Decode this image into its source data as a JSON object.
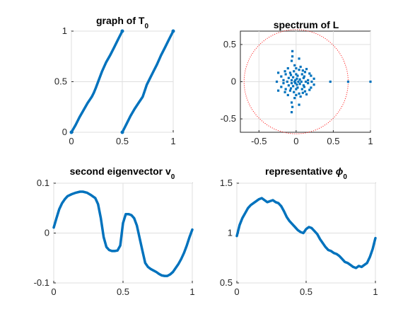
{
  "figure": {
    "background": "#ffffff",
    "line_color": "#0072bd",
    "circle_color": "#ff0000"
  },
  "chart_data": [
    {
      "id": "graph_T0",
      "type": "line",
      "title": "graph of T",
      "title_subscript": "0",
      "xlim": [
        0,
        1
      ],
      "ylim": [
        0,
        1
      ],
      "xticks": [
        0,
        0.5,
        1
      ],
      "xtick_labels": [
        "0",
        "0.5",
        "1"
      ],
      "yticks": [
        0,
        0.5,
        1
      ],
      "ytick_labels": [
        "0",
        "0.5",
        "1"
      ],
      "grid": true,
      "series": [
        {
          "x": [
            0,
            0.04,
            0.08,
            0.12,
            0.16,
            0.2,
            0.22,
            0.24,
            0.27,
            0.3,
            0.34,
            0.38,
            0.42,
            0.46,
            0.5
          ],
          "y": [
            0,
            0.07,
            0.15,
            0.22,
            0.29,
            0.35,
            0.39,
            0.44,
            0.52,
            0.6,
            0.69,
            0.76,
            0.84,
            0.92,
            1.0
          ]
        },
        {
          "x": [
            0.5,
            0.54,
            0.58,
            0.62,
            0.66,
            0.7,
            0.72,
            0.74,
            0.77,
            0.8,
            0.84,
            0.88,
            0.92,
            0.96,
            1.0
          ],
          "y": [
            0,
            0.08,
            0.16,
            0.23,
            0.29,
            0.35,
            0.41,
            0.47,
            0.53,
            0.59,
            0.67,
            0.76,
            0.84,
            0.92,
            1.0
          ]
        }
      ]
    },
    {
      "id": "spectrum_L",
      "type": "scatter",
      "title": "spectrum of L",
      "xlim": [
        -0.75,
        1
      ],
      "ylim": [
        -0.68,
        0.68
      ],
      "xticks": [
        -0.5,
        0,
        0.5,
        1
      ],
      "xtick_labels": [
        "-0.5",
        "0",
        "0.5",
        "1"
      ],
      "yticks": [
        -0.5,
        0,
        0.5
      ],
      "ytick_labels": [
        "-0.5",
        "0",
        "0.5"
      ],
      "grid": true,
      "circle": {
        "radius": 0.7
      },
      "points": [
        [
          1.0,
          0.0
        ],
        [
          0.7,
          0.0
        ],
        [
          0.46,
          0.0
        ],
        [
          -0.26,
          0.0
        ],
        [
          -0.05,
          0.41
        ],
        [
          -0.05,
          0.34
        ],
        [
          -0.06,
          0.28
        ],
        [
          0.04,
          0.31
        ],
        [
          -0.06,
          -0.41
        ],
        [
          -0.05,
          -0.34
        ],
        [
          -0.06,
          -0.28
        ],
        [
          0.04,
          -0.31
        ],
        [
          -0.14,
          0.1
        ],
        [
          -0.14,
          -0.1
        ],
        [
          0.12,
          0.13
        ],
        [
          0.12,
          -0.13
        ],
        [
          -0.1,
          0.05
        ],
        [
          -0.1,
          -0.05
        ],
        [
          0.1,
          0.05
        ],
        [
          0.1,
          -0.05
        ],
        [
          0.16,
          0.02
        ],
        [
          0.16,
          -0.02
        ],
        [
          -0.17,
          0.02
        ],
        [
          -0.17,
          -0.02
        ],
        [
          0.0,
          0.18
        ],
        [
          0.0,
          -0.18
        ],
        [
          0.06,
          0.2
        ],
        [
          0.06,
          -0.2
        ],
        [
          -0.03,
          0.14
        ],
        [
          -0.03,
          -0.14
        ],
        [
          0.08,
          0.1
        ],
        [
          0.08,
          -0.1
        ],
        [
          -0.08,
          0.12
        ],
        [
          -0.08,
          -0.12
        ],
        [
          0.2,
          0.08
        ],
        [
          0.2,
          -0.08
        ],
        [
          -0.2,
          0.07
        ],
        [
          -0.2,
          -0.07
        ],
        [
          0.02,
          0.08
        ],
        [
          0.02,
          -0.08
        ],
        [
          -0.04,
          0.06
        ],
        [
          -0.04,
          -0.06
        ],
        [
          0.05,
          0.03
        ],
        [
          0.05,
          -0.03
        ],
        [
          -0.06,
          0.02
        ],
        [
          -0.06,
          -0.02
        ],
        [
          0.13,
          0.0
        ],
        [
          -0.12,
          0.0
        ],
        [
          0.03,
          0.0
        ],
        [
          -0.02,
          0.0
        ],
        [
          0.07,
          0.0
        ],
        [
          0.24,
          0.04
        ],
        [
          0.24,
          -0.04
        ],
        [
          -0.24,
          0.12
        ],
        [
          -0.24,
          -0.12
        ],
        [
          0.14,
          0.17
        ],
        [
          0.14,
          -0.17
        ],
        [
          -0.11,
          0.18
        ],
        [
          -0.11,
          -0.18
        ],
        [
          0.0,
          0.1
        ],
        [
          0.0,
          -0.1
        ],
        [
          0.09,
          0.15
        ],
        [
          0.09,
          -0.15
        ],
        [
          0.18,
          0.11
        ],
        [
          0.18,
          -0.11
        ],
        [
          -0.15,
          0.14
        ],
        [
          -0.15,
          -0.14
        ],
        [
          0.04,
          0.16
        ],
        [
          0.04,
          -0.16
        ],
        [
          -0.02,
          0.22
        ],
        [
          -0.02,
          -0.22
        ],
        [
          0.11,
          0.07
        ],
        [
          0.11,
          -0.07
        ],
        [
          -0.07,
          0.09
        ],
        [
          -0.07,
          -0.09
        ],
        [
          0.01,
          0.04
        ],
        [
          0.01,
          -0.04
        ],
        [
          -0.01,
          0.02
        ],
        [
          -0.01,
          -0.02
        ],
        [
          0.21,
          0.0
        ]
      ]
    },
    {
      "id": "eigenvector_v0",
      "type": "line",
      "title": "second eigenvector v",
      "title_subscript": "0",
      "xlim": [
        0,
        1
      ],
      "ylim": [
        -0.1,
        0.1
      ],
      "xticks": [
        0,
        0.5,
        1
      ],
      "xtick_labels": [
        "0",
        "0.5",
        "1"
      ],
      "yticks": [
        -0.1,
        0,
        0.1
      ],
      "ytick_labels": [
        "-0.1",
        "0",
        "0.1"
      ],
      "grid": true,
      "series": [
        {
          "x": [
            0,
            0.02,
            0.04,
            0.06,
            0.08,
            0.1,
            0.13,
            0.16,
            0.19,
            0.21,
            0.24,
            0.27,
            0.3,
            0.32,
            0.34,
            0.36,
            0.38,
            0.4,
            0.42,
            0.44,
            0.46,
            0.48,
            0.5,
            0.52,
            0.54,
            0.56,
            0.58,
            0.6,
            0.62,
            0.64,
            0.66,
            0.68,
            0.7,
            0.72,
            0.74,
            0.76,
            0.78,
            0.8,
            0.82,
            0.84,
            0.86,
            0.88,
            0.9,
            0.92,
            0.94,
            0.96,
            0.98,
            1.0
          ],
          "y": [
            0.011,
            0.03,
            0.048,
            0.06,
            0.068,
            0.074,
            0.078,
            0.081,
            0.083,
            0.083,
            0.081,
            0.076,
            0.07,
            0.058,
            0.03,
            -0.008,
            -0.028,
            -0.034,
            -0.036,
            -0.036,
            -0.035,
            -0.025,
            0.02,
            0.038,
            0.038,
            0.036,
            0.03,
            0.015,
            -0.01,
            -0.035,
            -0.06,
            -0.068,
            -0.072,
            -0.075,
            -0.078,
            -0.082,
            -0.085,
            -0.086,
            -0.086,
            -0.083,
            -0.078,
            -0.07,
            -0.062,
            -0.052,
            -0.04,
            -0.025,
            -0.008,
            0.007
          ]
        }
      ]
    },
    {
      "id": "representative_phi0",
      "type": "line",
      "title": "representative",
      "title_symbol": "ϕ",
      "title_subscript": "0",
      "xlim": [
        0,
        1
      ],
      "ylim": [
        0.5,
        1.5
      ],
      "xticks": [
        0,
        0.5,
        1
      ],
      "xtick_labels": [
        "0",
        "0.5",
        "1"
      ],
      "yticks": [
        0.5,
        1,
        1.5
      ],
      "ytick_labels": [
        "0.5",
        "1",
        "1.5"
      ],
      "grid": true,
      "series": [
        {
          "x": [
            0,
            0.02,
            0.04,
            0.06,
            0.08,
            0.1,
            0.12,
            0.14,
            0.16,
            0.18,
            0.2,
            0.22,
            0.24,
            0.26,
            0.28,
            0.3,
            0.32,
            0.34,
            0.36,
            0.38,
            0.4,
            0.42,
            0.44,
            0.46,
            0.48,
            0.5,
            0.52,
            0.54,
            0.56,
            0.58,
            0.6,
            0.62,
            0.64,
            0.66,
            0.68,
            0.7,
            0.72,
            0.74,
            0.76,
            0.78,
            0.8,
            0.82,
            0.84,
            0.86,
            0.88,
            0.9,
            0.92,
            0.94,
            0.96,
            0.98,
            1.0
          ],
          "y": [
            0.97,
            1.08,
            1.15,
            1.2,
            1.25,
            1.28,
            1.3,
            1.32,
            1.34,
            1.35,
            1.33,
            1.31,
            1.32,
            1.33,
            1.31,
            1.3,
            1.27,
            1.22,
            1.16,
            1.12,
            1.09,
            1.06,
            1.03,
            1.01,
            1.0,
            1.04,
            1.06,
            1.05,
            1.02,
            0.99,
            0.94,
            0.9,
            0.86,
            0.83,
            0.82,
            0.8,
            0.79,
            0.77,
            0.74,
            0.71,
            0.7,
            0.68,
            0.66,
            0.65,
            0.67,
            0.66,
            0.68,
            0.7,
            0.76,
            0.84,
            0.95
          ]
        }
      ]
    }
  ]
}
